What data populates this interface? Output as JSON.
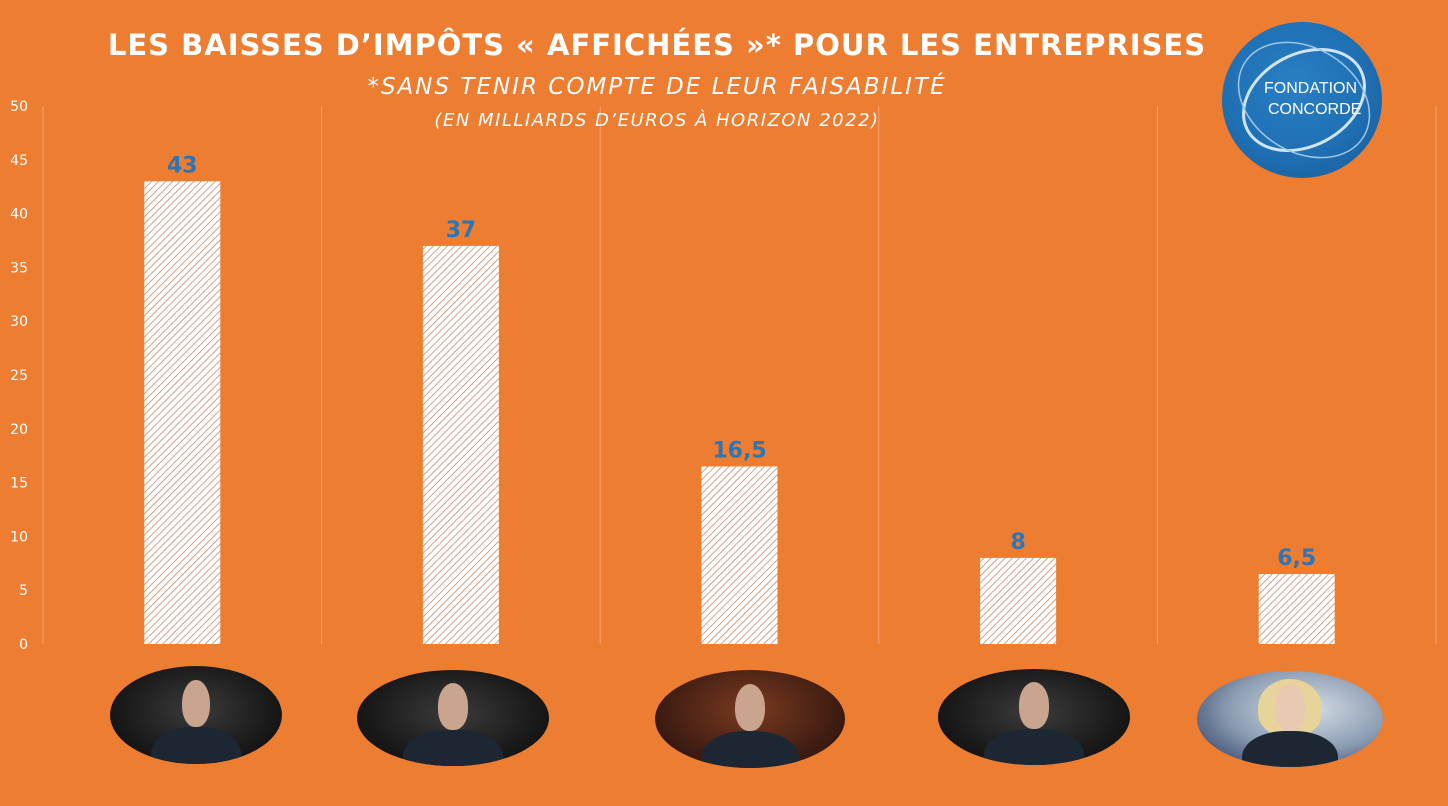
{
  "chart_data": {
    "type": "bar",
    "title": "LES BAISSES D’IMPÔTS « AFFICHÉES »* POUR LES ENTREPRISES",
    "subtitle": "*SANS TENIR COMPTE DE LEUR FAISABILITÉ",
    "unit": "(EN MILLIARDS D’EUROS À HORIZON 2022)",
    "categories": [
      "",
      "",
      "",
      "",
      ""
    ],
    "values": [
      43,
      37,
      16.5,
      8,
      6.5
    ],
    "data_labels": [
      "43",
      "37",
      "16,5",
      "8",
      "6,5"
    ],
    "ylim": [
      0,
      50
    ],
    "yticks": [
      0,
      5,
      10,
      15,
      20,
      25,
      30,
      35,
      40,
      45,
      50
    ],
    "grid": "vertical separators",
    "legend": "none",
    "colors": {
      "background": "#ED7D31",
      "bar_fill": "#FFFFFF",
      "bar_hatch": "#C98A6A",
      "data_label": "#2E75B6",
      "axis_text": "#FFFFFF",
      "gridline": "#F4A477"
    }
  },
  "logo": {
    "line1": "FONDATION",
    "line2": "CONCORDE"
  },
  "portraits": [
    "portrait-1",
    "portrait-2",
    "portrait-3",
    "portrait-4",
    "portrait-5"
  ]
}
